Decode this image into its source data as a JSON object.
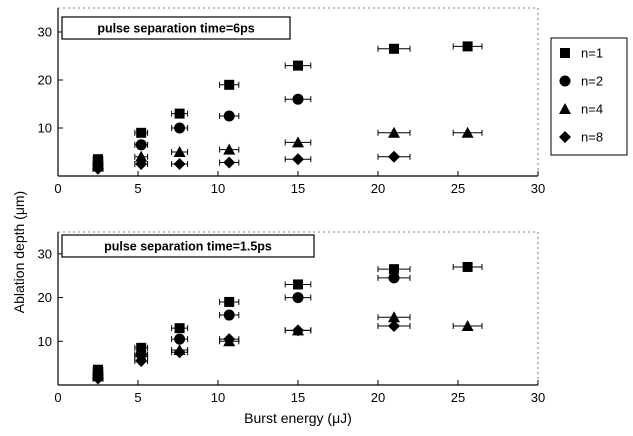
{
  "chart_data": [
    {
      "type": "scatter",
      "title": "pulse separation time=6ps",
      "xlabel": "",
      "ylabel": "",
      "xlim": [
        0,
        30
      ],
      "ylim": [
        0,
        35
      ],
      "xticks": [
        "0",
        "5",
        "10",
        "15",
        "20",
        "25",
        "30"
      ],
      "yticks": [
        "10",
        "20",
        "30"
      ],
      "grid": false,
      "error_bars": "horizontal",
      "series": [
        {
          "name": "n=1",
          "marker": "square",
          "x": [
            2.5,
            5.2,
            7.6,
            10.7,
            15.0,
            21.0,
            25.6
          ],
          "y": [
            3.5,
            9.0,
            13.0,
            19.0,
            23.0,
            26.5,
            27.0
          ],
          "xerr": [
            0.3,
            0.4,
            0.5,
            0.6,
            0.8,
            1.0,
            0.9
          ]
        },
        {
          "name": "n=2",
          "marker": "circle",
          "x": [
            2.5,
            5.2,
            7.6,
            10.7,
            15.0
          ],
          "y": [
            2.5,
            6.5,
            10.0,
            12.5,
            16.0
          ],
          "xerr": [
            0.3,
            0.4,
            0.5,
            0.6,
            0.8
          ]
        },
        {
          "name": "n=4",
          "marker": "triangle",
          "x": [
            2.5,
            5.2,
            7.6,
            10.7,
            15.0,
            21.0,
            25.6
          ],
          "y": [
            2.0,
            4.0,
            5.0,
            5.5,
            7.0,
            9.0,
            9.0
          ],
          "xerr": [
            0.3,
            0.4,
            0.5,
            0.6,
            0.8,
            1.0,
            0.9
          ]
        },
        {
          "name": "n=8",
          "marker": "diamond",
          "x": [
            2.5,
            5.2,
            7.6,
            10.7,
            15.0,
            21.0
          ],
          "y": [
            1.5,
            2.5,
            2.5,
            2.8,
            3.5,
            4.0
          ],
          "xerr": [
            0.3,
            0.4,
            0.5,
            0.6,
            0.8,
            1.0
          ]
        }
      ]
    },
    {
      "type": "scatter",
      "title": "pulse separation time=1.5ps",
      "xlabel": "Burst energy (μJ)",
      "ylabel": "",
      "xlim": [
        0,
        30
      ],
      "ylim": [
        0,
        35
      ],
      "xticks": [
        "0",
        "5",
        "10",
        "15",
        "20",
        "25",
        "30"
      ],
      "yticks": [
        "10",
        "20",
        "30"
      ],
      "grid": false,
      "error_bars": "horizontal",
      "series": [
        {
          "name": "n=1",
          "marker": "square",
          "x": [
            2.5,
            5.2,
            7.6,
            10.7,
            15.0,
            21.0,
            25.6
          ],
          "y": [
            3.5,
            8.5,
            13.0,
            19.0,
            23.0,
            26.5,
            27.0
          ],
          "xerr": [
            0.3,
            0.4,
            0.5,
            0.6,
            0.8,
            1.0,
            0.9
          ]
        },
        {
          "name": "n=2",
          "marker": "circle",
          "x": [
            2.5,
            5.2,
            7.6,
            10.7,
            15.0,
            21.0
          ],
          "y": [
            2.5,
            7.0,
            10.5,
            16.0,
            20.0,
            24.5
          ],
          "xerr": [
            0.3,
            0.4,
            0.5,
            0.6,
            0.8,
            1.0
          ]
        },
        {
          "name": "n=4",
          "marker": "triangle",
          "x": [
            2.5,
            5.2,
            7.6,
            10.7,
            15.0,
            21.0,
            25.6
          ],
          "y": [
            2.0,
            6.5,
            8.0,
            10.0,
            12.5,
            15.5,
            13.5
          ],
          "xerr": [
            0.3,
            0.4,
            0.5,
            0.6,
            0.8,
            1.0,
            0.9
          ]
        },
        {
          "name": "n=8",
          "marker": "diamond",
          "x": [
            2.5,
            5.2,
            7.6,
            10.7,
            15.0,
            21.0
          ],
          "y": [
            1.5,
            5.5,
            7.5,
            10.5,
            12.5,
            13.5
          ],
          "xerr": [
            0.3,
            0.4,
            0.5,
            0.6,
            0.8,
            1.0
          ]
        }
      ]
    }
  ],
  "shared": {
    "ylabel": "Ablation depth (μm)",
    "legend": {
      "placement": "right of top panel",
      "entries": [
        {
          "label": "n=1",
          "marker": "square"
        },
        {
          "label": "n=2",
          "marker": "circle"
        },
        {
          "label": "n=4",
          "marker": "triangle"
        },
        {
          "label": "n=8",
          "marker": "diamond"
        }
      ]
    }
  }
}
